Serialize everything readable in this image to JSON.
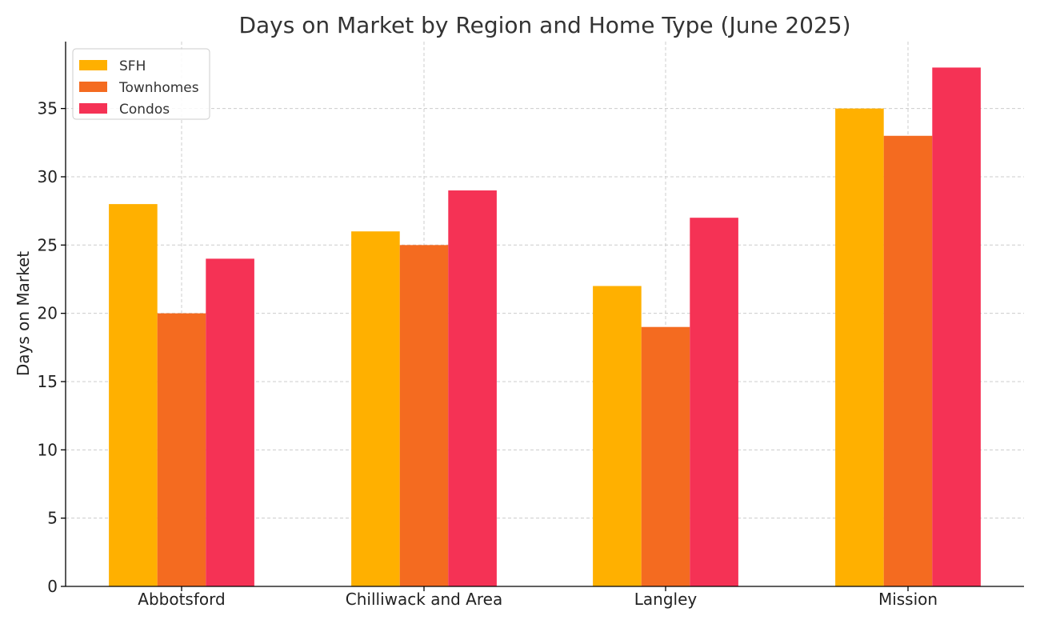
{
  "chart_data": {
    "type": "bar",
    "title": "Days on Market by Region and Home Type (June 2025)",
    "xlabel": "",
    "ylabel": "Days on Market",
    "categories": [
      "Abbotsford",
      "Chilliwack and Area",
      "Langley",
      "Mission"
    ],
    "series": [
      {
        "name": "SFH",
        "color": "#FFB000",
        "values": [
          28,
          26,
          22,
          35
        ]
      },
      {
        "name": "Townhomes",
        "color": "#F46B20",
        "values": [
          20,
          25,
          19,
          33
        ]
      },
      {
        "name": "Condos",
        "color": "#F53255",
        "values": [
          24,
          29,
          27,
          38
        ]
      }
    ],
    "ylim": [
      0,
      40
    ],
    "yticks": [
      0,
      5,
      10,
      15,
      20,
      25,
      30,
      35
    ],
    "grid": true,
    "legend_position": "top-left"
  }
}
